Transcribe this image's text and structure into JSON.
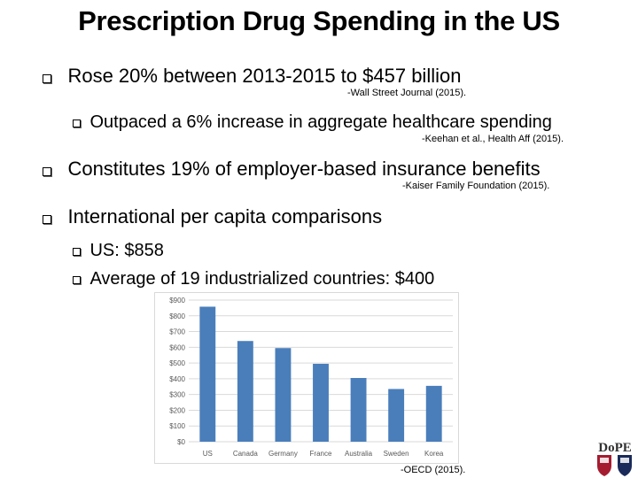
{
  "slide": {
    "title": "Prescription Drug Spending in the US",
    "bullets": [
      {
        "text": "Rose 20% between 2013-2015 to $457 billion",
        "citation": "-Wall Street Journal (2015)."
      },
      {
        "text": "Outpaced a 6% increase in aggregate healthcare spending",
        "citation": "-Keehan et al., Health Aff (2015)."
      },
      {
        "text": "Constitutes 19% of employer-based insurance benefits",
        "citation": "-Kaiser Family Foundation (2015)."
      },
      {
        "text": "International per capita comparisons"
      },
      {
        "text": "US: $858"
      },
      {
        "text": "Average of 19 industrialized countries: $400"
      }
    ],
    "chart_citation": "-OECD (2015).",
    "logo_text": "DoPE"
  },
  "chart_data": {
    "type": "bar",
    "categories": [
      "US",
      "Canada",
      "Germany",
      "France",
      "Australia",
      "Sweden",
      "Korea"
    ],
    "values": [
      858,
      640,
      595,
      495,
      405,
      335,
      355
    ],
    "title": "",
    "xlabel": "",
    "ylabel": "",
    "ylim": [
      0,
      900
    ],
    "yticks": [
      "$0",
      "$100",
      "$200",
      "$300",
      "$400",
      "$500",
      "$600",
      "$700",
      "$800",
      "$900"
    ],
    "bar_color": "#4a7ebb",
    "grid": true
  }
}
